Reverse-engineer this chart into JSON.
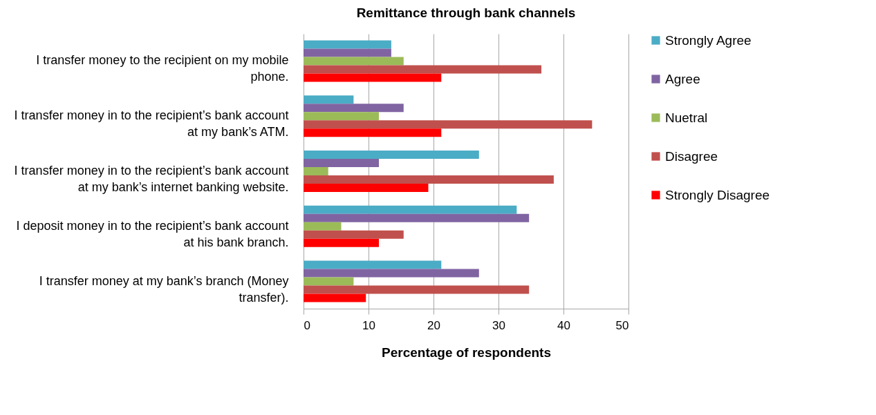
{
  "chart_data": {
    "type": "bar",
    "orientation": "horizontal",
    "title": "Remittance through bank channels",
    "xlabel": "Percentage of respondents",
    "categories": [
      "I transfer money to the recipient on my mobile phone.",
      "I transfer money in to the recipient’s bank account at my bank’s ATM.",
      "I transfer money in to the recipient’s bank account at my bank’s internet banking website.",
      "I deposit money in to the recipient’s bank account at his bank branch.",
      "I transfer money at my bank’s branch (Money transfer)."
    ],
    "series": [
      {
        "name": "Strongly Agree",
        "color": "#4bacc6",
        "values": [
          13.5,
          7.7,
          27.0,
          32.8,
          21.2
        ]
      },
      {
        "name": "Agree",
        "color": "#8064a2",
        "values": [
          13.5,
          15.4,
          11.6,
          34.7,
          27.0
        ]
      },
      {
        "name": "Nuetral",
        "color": "#9bbb59",
        "values": [
          15.4,
          11.6,
          3.8,
          5.8,
          7.7
        ]
      },
      {
        "name": "Disagree",
        "color": "#c0504d",
        "values": [
          36.6,
          44.4,
          38.5,
          15.4,
          34.7
        ]
      },
      {
        "name": "Strongly Disagree",
        "color": "#ff0000",
        "values": [
          21.2,
          21.2,
          19.2,
          11.6,
          9.6
        ]
      }
    ],
    "xlim": [
      0,
      50
    ],
    "xticks": [
      0,
      10,
      20,
      30,
      40,
      50
    ],
    "grid": "x",
    "legend": "right"
  }
}
